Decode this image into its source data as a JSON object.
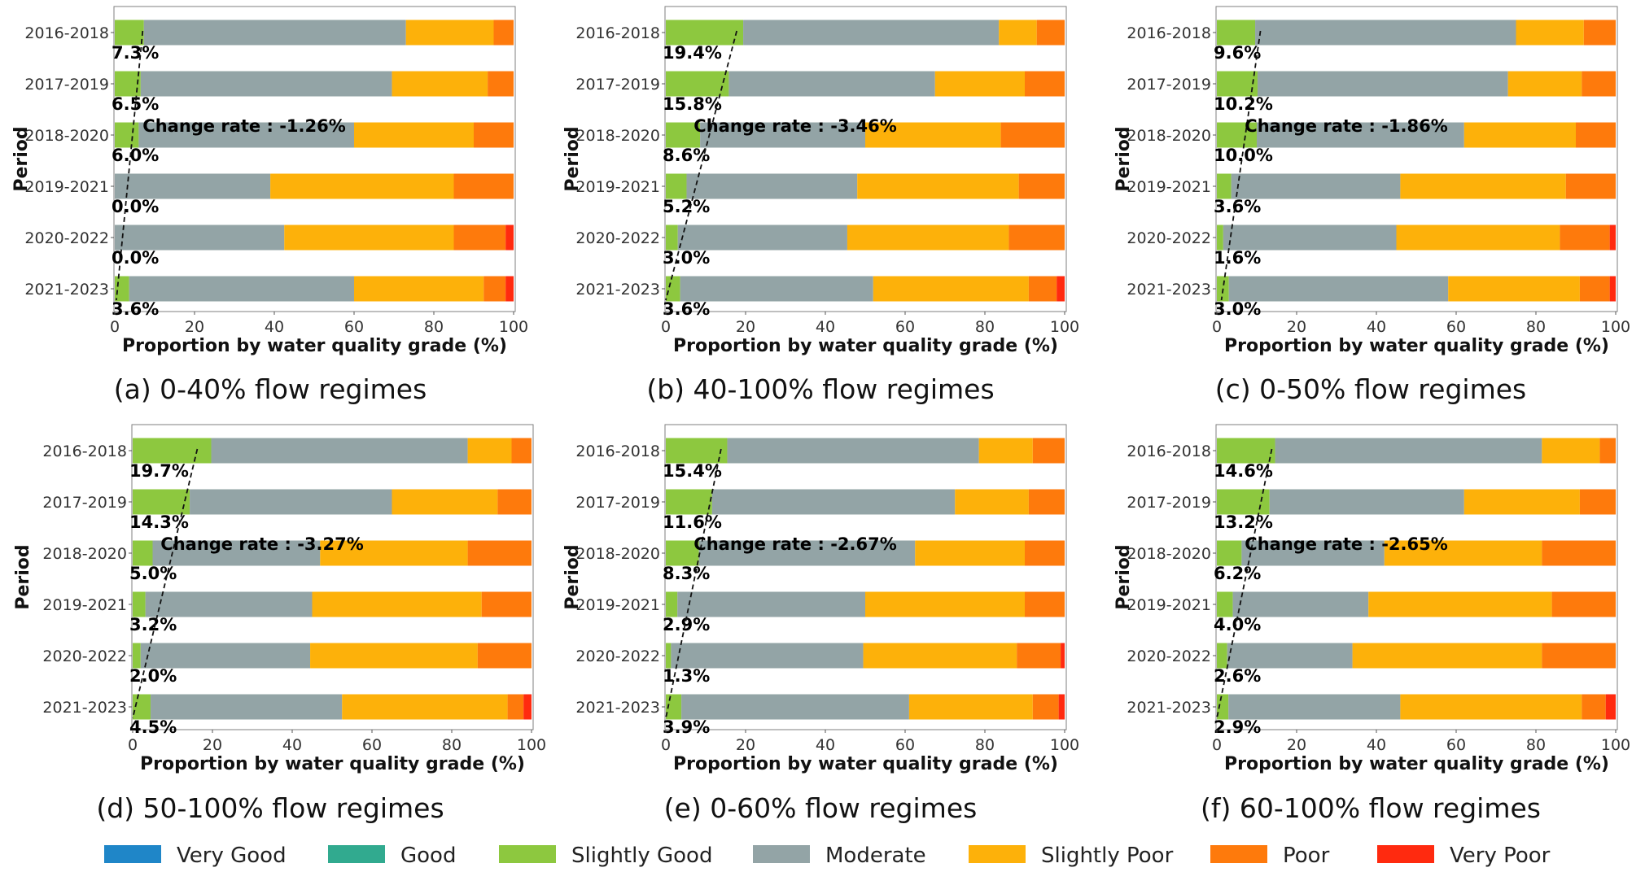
{
  "chart_data": [
    {
      "type": "bar",
      "orientation": "horizontal-stacked",
      "caption": "(a) 0-40% flow regimes",
      "ylabel": "Period",
      "xlabel": "Proportion by water quality grade (%)",
      "xlim": [
        0,
        100
      ],
      "xticks": [
        0,
        20,
        40,
        60,
        80,
        100
      ],
      "categories": [
        "2016-2018",
        "2017-2019",
        "2018-2020",
        "2019-2021",
        "2020-2022",
        "2021-2023"
      ],
      "series": [
        {
          "name": "Very Good",
          "values": [
            0,
            0,
            0,
            0,
            0,
            0
          ]
        },
        {
          "name": "Good",
          "values": [
            0,
            0,
            0,
            0,
            0,
            0
          ]
        },
        {
          "name": "Slightly Good",
          "values": [
            7.3,
            6.5,
            6.0,
            0.0,
            0.0,
            3.6
          ]
        },
        {
          "name": "Moderate",
          "values": [
            65.7,
            63.0,
            54.0,
            39.0,
            42.5,
            56.4
          ]
        },
        {
          "name": "Slightly Poor",
          "values": [
            22.0,
            24.0,
            30.0,
            46.0,
            42.5,
            32.5
          ]
        },
        {
          "name": "Poor",
          "values": [
            5.0,
            6.5,
            10.0,
            15.0,
            13.0,
            5.5
          ]
        },
        {
          "name": "Very Poor",
          "values": [
            0,
            0,
            0,
            0,
            2.0,
            2.0
          ]
        }
      ],
      "slightly_good_labels": [
        "7.3%",
        "6.5%",
        "6.0%",
        "0.0%",
        "0.0%",
        "3.6%"
      ],
      "change_rate_label": "Change rate : -1.26%"
    },
    {
      "type": "bar",
      "orientation": "horizontal-stacked",
      "caption": "(b) 40-100% flow regimes",
      "ylabel": "Period",
      "xlabel": "Proportion by water quality grade (%)",
      "xlim": [
        0,
        100
      ],
      "xticks": [
        0,
        20,
        40,
        60,
        80,
        100
      ],
      "categories": [
        "2016-2018",
        "2017-2019",
        "2018-2020",
        "2019-2021",
        "2020-2022",
        "2021-2023"
      ],
      "series": [
        {
          "name": "Very Good",
          "values": [
            0,
            0,
            0,
            0,
            0,
            0
          ]
        },
        {
          "name": "Good",
          "values": [
            0,
            0,
            0,
            0,
            0,
            0
          ]
        },
        {
          "name": "Slightly Good",
          "values": [
            19.4,
            15.8,
            8.6,
            5.2,
            3.0,
            3.6
          ]
        },
        {
          "name": "Moderate",
          "values": [
            64.1,
            51.7,
            41.4,
            42.8,
            42.5,
            48.4
          ]
        },
        {
          "name": "Slightly Poor",
          "values": [
            9.5,
            22.5,
            34.0,
            40.5,
            40.5,
            39.0
          ]
        },
        {
          "name": "Poor",
          "values": [
            7.0,
            10.0,
            16.0,
            11.5,
            14.0,
            7.0
          ]
        },
        {
          "name": "Very Poor",
          "values": [
            0,
            0,
            0,
            0,
            0,
            2.0
          ]
        }
      ],
      "slightly_good_labels": [
        "19.4%",
        "15.8%",
        "8.6%",
        "5.2%",
        "3.0%",
        "3.6%"
      ],
      "change_rate_label": "Change rate : -3.46%"
    },
    {
      "type": "bar",
      "orientation": "horizontal-stacked",
      "caption": "(c) 0-50% flow regimes",
      "ylabel": "Period",
      "xlabel": "Proportion by water quality grade (%)",
      "xlim": [
        0,
        100
      ],
      "xticks": [
        0,
        20,
        40,
        60,
        80,
        100
      ],
      "categories": [
        "2016-2018",
        "2017-2019",
        "2018-2020",
        "2019-2021",
        "2020-2022",
        "2021-2023"
      ],
      "series": [
        {
          "name": "Very Good",
          "values": [
            0,
            0,
            0,
            0,
            0,
            0
          ]
        },
        {
          "name": "Good",
          "values": [
            0,
            0,
            0,
            0,
            0,
            0
          ]
        },
        {
          "name": "Slightly Good",
          "values": [
            9.6,
            10.2,
            10.0,
            3.6,
            1.6,
            3.0
          ]
        },
        {
          "name": "Moderate",
          "values": [
            65.4,
            62.8,
            52.0,
            42.4,
            43.4,
            55.0
          ]
        },
        {
          "name": "Slightly Poor",
          "values": [
            17.0,
            18.5,
            28.0,
            41.5,
            41.0,
            33.0
          ]
        },
        {
          "name": "Poor",
          "values": [
            8.0,
            8.5,
            10.0,
            12.5,
            12.5,
            7.5
          ]
        },
        {
          "name": "Very Poor",
          "values": [
            0,
            0,
            0,
            0,
            1.5,
            1.5
          ]
        }
      ],
      "slightly_good_labels": [
        "9.6%",
        "10.2%",
        "10.0%",
        "3.6%",
        "1.6%",
        "3.0%"
      ],
      "change_rate_label": "Change rate : -1.86%"
    },
    {
      "type": "bar",
      "orientation": "horizontal-stacked",
      "caption": "(d) 50-100% flow regimes",
      "ylabel": "Period",
      "xlabel": "Proportion by water quality grade (%)",
      "xlim": [
        0,
        100
      ],
      "xticks": [
        0,
        20,
        40,
        60,
        80,
        100
      ],
      "categories": [
        "2016-2018",
        "2017-2019",
        "2018-2020",
        "2019-2021",
        "2020-2022",
        "2021-2023"
      ],
      "series": [
        {
          "name": "Very Good",
          "values": [
            0,
            0,
            0,
            0,
            0,
            0
          ]
        },
        {
          "name": "Good",
          "values": [
            0,
            0,
            0,
            0,
            0,
            0
          ]
        },
        {
          "name": "Slightly Good",
          "values": [
            19.7,
            14.3,
            5.0,
            3.2,
            2.0,
            4.5
          ]
        },
        {
          "name": "Moderate",
          "values": [
            64.3,
            50.7,
            42.0,
            41.8,
            42.5,
            48.0
          ]
        },
        {
          "name": "Slightly Poor",
          "values": [
            11.0,
            26.5,
            37.0,
            42.5,
            42.0,
            41.5
          ]
        },
        {
          "name": "Poor",
          "values": [
            5.0,
            8.5,
            16.0,
            12.5,
            13.5,
            4.0
          ]
        },
        {
          "name": "Very Poor",
          "values": [
            0,
            0,
            0,
            0,
            0,
            2.0
          ]
        }
      ],
      "slightly_good_labels": [
        "19.7%",
        "14.3%",
        "5.0%",
        "3.2%",
        "2.0%",
        "4.5%"
      ],
      "change_rate_label": "Change rate : -3.27%"
    },
    {
      "type": "bar",
      "orientation": "horizontal-stacked",
      "caption": "(e) 0-60% flow regimes",
      "ylabel": "Period",
      "xlabel": "Proportion by water quality grade (%)",
      "xlim": [
        0,
        100
      ],
      "xticks": [
        0,
        20,
        40,
        60,
        80,
        100
      ],
      "categories": [
        "2016-2018",
        "2017-2019",
        "2018-2020",
        "2019-2021",
        "2020-2022",
        "2021-2023"
      ],
      "series": [
        {
          "name": "Very Good",
          "values": [
            0,
            0,
            0,
            0,
            0,
            0
          ]
        },
        {
          "name": "Good",
          "values": [
            0,
            0,
            0,
            0,
            0,
            0
          ]
        },
        {
          "name": "Slightly Good",
          "values": [
            15.4,
            11.6,
            8.3,
            2.9,
            1.3,
            3.9
          ]
        },
        {
          "name": "Moderate",
          "values": [
            63.1,
            60.9,
            54.2,
            47.1,
            48.2,
            57.1
          ]
        },
        {
          "name": "Slightly Poor",
          "values": [
            13.5,
            18.5,
            27.5,
            40.0,
            38.5,
            31.0
          ]
        },
        {
          "name": "Poor",
          "values": [
            8.0,
            9.0,
            10.0,
            10.0,
            11.0,
            6.5
          ]
        },
        {
          "name": "Very Poor",
          "values": [
            0,
            0,
            0,
            0,
            1.0,
            1.5
          ]
        }
      ],
      "slightly_good_labels": [
        "15.4%",
        "11.6%",
        "8.3%",
        "2.9%",
        "1.3%",
        "3.9%"
      ],
      "change_rate_label": "Change rate : -2.67%"
    },
    {
      "type": "bar",
      "orientation": "horizontal-stacked",
      "caption": "(f) 60-100% flow regimes",
      "ylabel": "Period",
      "xlabel": "Proportion by water quality grade (%)",
      "xlim": [
        0,
        100
      ],
      "xticks": [
        0,
        20,
        40,
        60,
        80,
        100
      ],
      "categories": [
        "2016-2018",
        "2017-2019",
        "2018-2020",
        "2019-2021",
        "2020-2022",
        "2021-2023"
      ],
      "series": [
        {
          "name": "Very Good",
          "values": [
            0,
            0,
            0,
            0,
            0,
            0
          ]
        },
        {
          "name": "Good",
          "values": [
            0,
            0,
            0,
            0,
            0,
            0
          ]
        },
        {
          "name": "Slightly Good",
          "values": [
            14.6,
            13.2,
            6.2,
            4.0,
            2.6,
            2.9
          ]
        },
        {
          "name": "Moderate",
          "values": [
            66.9,
            48.8,
            35.8,
            34.0,
            31.4,
            43.1
          ]
        },
        {
          "name": "Slightly Poor",
          "values": [
            14.5,
            29.0,
            39.5,
            46.0,
            47.5,
            45.5
          ]
        },
        {
          "name": "Poor",
          "values": [
            4.0,
            9.0,
            18.5,
            16.0,
            18.5,
            6.0
          ]
        },
        {
          "name": "Very Poor",
          "values": [
            0,
            0,
            0,
            0,
            0,
            2.5
          ]
        }
      ],
      "slightly_good_labels": [
        "14.6%",
        "13.2%",
        "6.2%",
        "4.0%",
        "2.6%",
        "2.9%"
      ],
      "change_rate_label": "Change rate : -2.65%"
    }
  ],
  "legend": [
    {
      "label": "Very Good",
      "color": "#1f86c8"
    },
    {
      "label": "Good",
      "color": "#31aa8f"
    },
    {
      "label": "Slightly Good",
      "color": "#8dc83f"
    },
    {
      "label": "Moderate",
      "color": "#93a4a6"
    },
    {
      "label": "Slightly Poor",
      "color": "#fdb10a"
    },
    {
      "label": "Poor",
      "color": "#fe7a0c"
    },
    {
      "label": "Very Poor",
      "color": "#ff2a0f"
    }
  ]
}
